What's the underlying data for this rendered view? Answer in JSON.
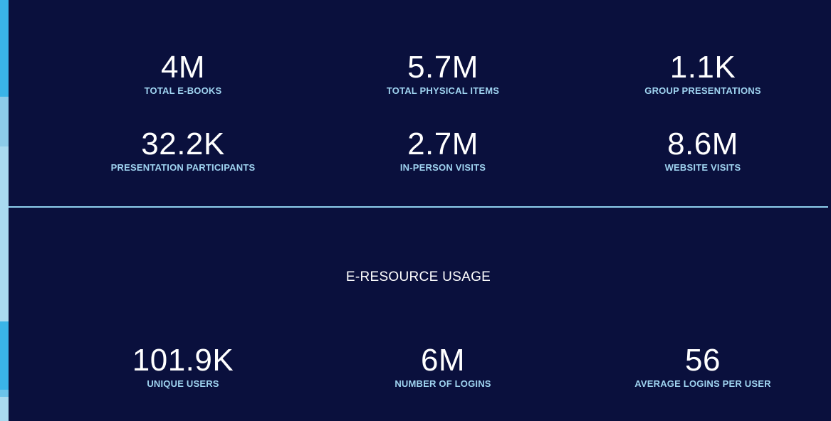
{
  "colors": {
    "background": "#0a103d",
    "value_text": "#ffffff",
    "label_text": "#9fd3f0",
    "divider": "#8fd0ee"
  },
  "top_stats": [
    {
      "value": "4M",
      "label": "TOTAL E-BOOKS"
    },
    {
      "value": "5.7M",
      "label": "TOTAL PHYSICAL ITEMS"
    },
    {
      "value": "1.1K",
      "label": "GROUP PRESENTATIONS"
    },
    {
      "value": "32.2K",
      "label": "PRESENTATION PARTICIPANTS"
    },
    {
      "value": "2.7M",
      "label": "IN-PERSON VISITS"
    },
    {
      "value": "8.6M",
      "label": "WEBSITE VISITS"
    }
  ],
  "eresource": {
    "title": "E-RESOURCE USAGE",
    "stats": [
      {
        "value": "101.9K",
        "label": "UNIQUE USERS"
      },
      {
        "value": "6M",
        "label": "NUMBER OF LOGINS"
      },
      {
        "value": "56",
        "label": "AVERAGE LOGINS PER USER"
      }
    ]
  }
}
